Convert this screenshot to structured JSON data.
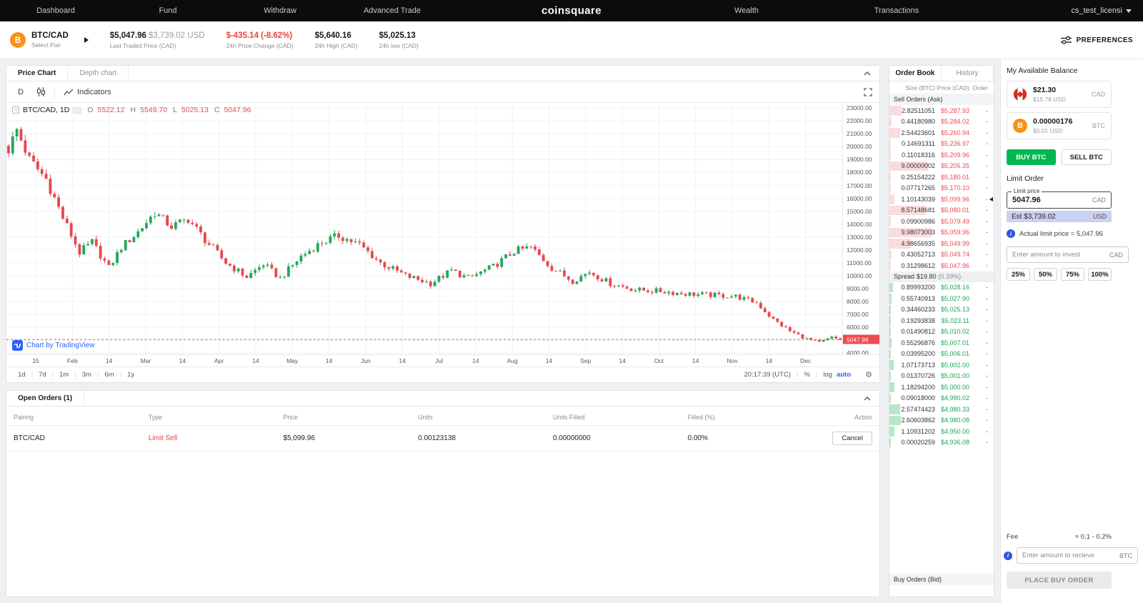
{
  "nav": {
    "dashboard": "Dashboard",
    "fund": "Fund",
    "withdraw": "Withdraw",
    "advanced_trade": "Advanced Trade",
    "logo": "coinsquare",
    "wealth": "Wealth",
    "transactions": "Transactions",
    "account": "cs_test_licensi"
  },
  "pair_header": {
    "pair": "BTC/CAD",
    "select_pair": "Select Pair",
    "last_price": "$5,047.96",
    "last_price_usd": "$3,739.02 USD",
    "last_price_label": "Last Traded Price (CAD)",
    "change": "$-435.14 (-8.62%)",
    "change_label": "24h Price Change (CAD)",
    "high": "$5,640.16",
    "high_label": "24h High (CAD)",
    "low": "$5,025.13",
    "low_label": "24h low (CAD)",
    "preferences": "PREFERENCES"
  },
  "chart": {
    "tab_price": "Price Chart",
    "tab_depth": "Depth chart",
    "interval": "D",
    "indicators": "Indicators",
    "legend_symbol": "BTC/CAD, 1D",
    "legend": {
      "o": "5522.12",
      "h": "5549.70",
      "l": "5025.13",
      "c": "5047.96"
    },
    "watermark": "Chart by TradingView",
    "price_tag": "5047.96",
    "ranges": [
      "1d",
      "7d",
      "1m",
      "3m",
      "6m",
      "1y"
    ],
    "clock": "20:17:39 (UTC)",
    "scale_percent": "%",
    "scale_log": "log",
    "scale_auto": "auto",
    "x_labels": [
      "15",
      "Feb",
      "14",
      "Mar",
      "14",
      "Apr",
      "14",
      "May",
      "14",
      "Jun",
      "14",
      "Jul",
      "14",
      "Aug",
      "14",
      "Sep",
      "14",
      "Oct",
      "14",
      "Nov",
      "14",
      "Dec"
    ],
    "y_ticks": [
      "23000.00",
      "22000.00",
      "21000.00",
      "20000.00",
      "19000.00",
      "18000.00",
      "17000.00",
      "16000.00",
      "15000.00",
      "14000.00",
      "13000.00",
      "12000.00",
      "11000.00",
      "10000.00",
      "9000.00",
      "8000.00",
      "7000.00",
      "6000.00",
      "5000.00",
      "4000.00"
    ]
  },
  "chart_data": {
    "type": "candlestick",
    "symbol": "BTC/CAD",
    "interval": "1D",
    "ohlc_last": {
      "open": 5522.12,
      "high": 5549.7,
      "low": 5025.13,
      "close": 5047.96
    },
    "price_min": 3900,
    "price_max": 23400,
    "count": 200,
    "close_anchors": [
      [
        0,
        19800
      ],
      [
        2,
        21300
      ],
      [
        5,
        19000
      ],
      [
        9,
        17500
      ],
      [
        13,
        14500
      ],
      [
        17,
        11800
      ],
      [
        20,
        12600
      ],
      [
        24,
        10600
      ],
      [
        27,
        12200
      ],
      [
        31,
        13400
      ],
      [
        35,
        14900
      ],
      [
        39,
        13800
      ],
      [
        43,
        14400
      ],
      [
        47,
        12800
      ],
      [
        52,
        11000
      ],
      [
        57,
        9900
      ],
      [
        61,
        10900
      ],
      [
        65,
        9800
      ],
      [
        70,
        11500
      ],
      [
        75,
        12600
      ],
      [
        79,
        13100
      ],
      [
        84,
        12400
      ],
      [
        89,
        11000
      ],
      [
        95,
        10000
      ],
      [
        101,
        9400
      ],
      [
        106,
        10400
      ],
      [
        110,
        9800
      ],
      [
        116,
        10700
      ],
      [
        121,
        11900
      ],
      [
        125,
        12200
      ],
      [
        130,
        10600
      ],
      [
        135,
        9600
      ],
      [
        139,
        10300
      ],
      [
        144,
        9400
      ],
      [
        150,
        8900
      ],
      [
        156,
        8800
      ],
      [
        162,
        8600
      ],
      [
        168,
        8500
      ],
      [
        174,
        8400
      ],
      [
        179,
        7900
      ],
      [
        183,
        6600
      ],
      [
        187,
        5700
      ],
      [
        191,
        5100
      ],
      [
        194,
        4800
      ],
      [
        197,
        5200
      ],
      [
        199,
        5047.96
      ]
    ]
  },
  "order_book": {
    "tab_book": "Order Book",
    "tab_history": "History",
    "col_size": "Size (BTC)",
    "col_price": "Price (CAD)",
    "col_order": "Order",
    "ask_header": "Sell Orders (Ask)",
    "bid_header": "Buy Orders (Bid)",
    "spread_label": "Spread",
    "spread_value": "$19.80",
    "spread_pct": "(0.39%)",
    "asks": [
      {
        "size": "2.82511051",
        "price": "$5,287.93",
        "order": "-"
      },
      {
        "size": "0.44180980",
        "price": "$5,284.02",
        "order": "-"
      },
      {
        "size": "2.54423601",
        "price": "$5,260.94",
        "order": "-"
      },
      {
        "size": "0.14691311",
        "price": "$5,236.97",
        "order": "-"
      },
      {
        "size": "0.11018316",
        "price": "$5,209.96",
        "order": "-"
      },
      {
        "size": "9.00000002",
        "price": "$5,205.35",
        "order": "-"
      },
      {
        "size": "0.25154222",
        "price": "$5,180.01",
        "order": "-"
      },
      {
        "size": "0.07717265",
        "price": "$5,170.10",
        "order": "-"
      },
      {
        "size": "1.10143039",
        "price": "$5,099.96",
        "order": "-",
        "marker": true
      },
      {
        "size": "8.57148681",
        "price": "$5,080.01",
        "order": "-"
      },
      {
        "size": "0.09900986",
        "price": "$5,079.49",
        "order": "-"
      },
      {
        "size": "9.98073003",
        "price": "$5,059.96",
        "order": "-"
      },
      {
        "size": "4.98656935",
        "price": "$5,049.99",
        "order": "-"
      },
      {
        "size": "0.43052713",
        "price": "$5,049.74",
        "order": "-"
      },
      {
        "size": "0.31298612",
        "price": "$5,047.96",
        "order": "-"
      }
    ],
    "bids": [
      {
        "size": "0.89993200",
        "price": "$5,028.16",
        "order": "-"
      },
      {
        "size": "0.55740913",
        "price": "$5,027.90",
        "order": "-"
      },
      {
        "size": "0.34460233",
        "price": "$5,025.13",
        "order": "-"
      },
      {
        "size": "0.19293838",
        "price": "$5,023.11",
        "order": "-"
      },
      {
        "size": "0.01490812",
        "price": "$5,010.02",
        "order": "-"
      },
      {
        "size": "0.55296876",
        "price": "$5,007.01",
        "order": "-"
      },
      {
        "size": "0.03995200",
        "price": "$5,006.01",
        "order": "-"
      },
      {
        "size": "1.07173713",
        "price": "$5,002.00",
        "order": "-"
      },
      {
        "size": "0.01370726",
        "price": "$5,001.00",
        "order": "-"
      },
      {
        "size": "1.18294200",
        "price": "$5,000.00",
        "order": "-"
      },
      {
        "size": "0.09018000",
        "price": "$4,990.02",
        "order": "-"
      },
      {
        "size": "2.57474423",
        "price": "$4,980.33",
        "order": "-"
      },
      {
        "size": "2.60603862",
        "price": "$4,980.08",
        "order": "-"
      },
      {
        "size": "1.10931202",
        "price": "$4,950.00",
        "order": "-"
      },
      {
        "size": "0.00020259",
        "price": "$4,936.08",
        "order": "-"
      }
    ]
  },
  "open_orders": {
    "title": "Open Orders (1)",
    "headers": [
      "Pairing",
      "Type",
      "Price",
      "Units",
      "Units Filled",
      "Filled (%)",
      "Action"
    ],
    "rows": [
      {
        "pairing": "BTC/CAD",
        "type": "Limit Sell",
        "price": "$5,099.96",
        "units": "0.00123138",
        "units_filled": "0.00000000",
        "filled": "0.00%",
        "action": "Cancel"
      }
    ]
  },
  "trade": {
    "balance_title": "My Available Balance",
    "cad_amount": "$21.30",
    "cad_usd": "$15.78 USD",
    "cad_label": "CAD",
    "btc_amount": "0.00000176",
    "btc_usd": "$0.01 USD",
    "btc_label": "BTC",
    "buy_btn": "BUY BTC",
    "sell_btn": "SELL BTC",
    "order_type": "Limit Order",
    "limit_label": "Limit price",
    "limit_value": "5047.96",
    "limit_currency": "CAD",
    "est_value": "Est $3,739.02",
    "est_currency": "USD",
    "actual_note": "Actual limit price = 5,047.96",
    "invest_placeholder": "Enter amount to invest",
    "invest_currency": "CAD",
    "percents": [
      "25%",
      "50%",
      "75%",
      "100%"
    ],
    "fee_label": "Fee",
    "fee_value": "≈ 0.1 - 0.2%",
    "receive_placeholder": "Enter amount to recieve",
    "receive_currency": "BTC",
    "submit": "PLACE BUY ORDER"
  },
  "colors": {
    "candle_up": "#23a85c",
    "candle_down": "#e8484e",
    "grid": "#f0f2f5",
    "last_price_line": "#ef4a50",
    "brand_green": "#00b852",
    "accent_blue": "#2962ff"
  }
}
